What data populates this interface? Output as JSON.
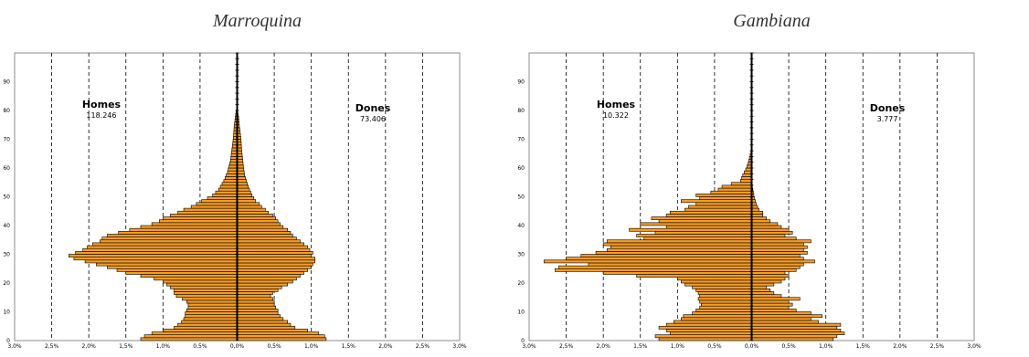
{
  "chart_data": [
    {
      "type": "bar",
      "orientation": "horizontal-pyramid",
      "title": "Marroquina",
      "left_group": {
        "name": "Homes",
        "count": "118.246"
      },
      "right_group": {
        "name": "Dones",
        "count": "73.406"
      },
      "x_ticks": [
        "3,0%",
        "2,5%",
        "2,0%",
        "1,5%",
        "1,0%",
        "0,5%",
        "0,0%",
        "0,5%",
        "1,0%",
        "1,5%",
        "2,0%",
        "2,5%",
        "3,0%"
      ],
      "y_ticks": [
        "0",
        "10",
        "20",
        "30",
        "40",
        "50",
        "60",
        "70",
        "80",
        "90"
      ],
      "xlim": [
        -3.0,
        3.0
      ],
      "ylim": [
        0,
        100
      ],
      "color": "#f39c2a",
      "edge_color": "#000000",
      "male_keys": [
        [
          0,
          1.3
        ],
        [
          1,
          1.25
        ],
        [
          2,
          1.15
        ],
        [
          3,
          1.0
        ],
        [
          4,
          0.85
        ],
        [
          5,
          0.8
        ],
        [
          6,
          0.75
        ],
        [
          7,
          0.72
        ],
        [
          8,
          0.7
        ],
        [
          9,
          0.7
        ],
        [
          10,
          0.68
        ],
        [
          11,
          0.66
        ],
        [
          12,
          0.66
        ],
        [
          13,
          0.68
        ],
        [
          14,
          0.74
        ],
        [
          15,
          0.82
        ],
        [
          16,
          0.85
        ],
        [
          17,
          0.85
        ],
        [
          18,
          0.9
        ],
        [
          19,
          0.95
        ],
        [
          20,
          1.0
        ],
        [
          21,
          1.12
        ],
        [
          22,
          1.3
        ],
        [
          23,
          1.5
        ],
        [
          24,
          1.62
        ],
        [
          25,
          1.75
        ],
        [
          26,
          1.9
        ],
        [
          27,
          2.05
        ],
        [
          28,
          2.2
        ],
        [
          29,
          2.27
        ],
        [
          30,
          2.18
        ],
        [
          31,
          2.08
        ],
        [
          32,
          2.02
        ],
        [
          33,
          1.95
        ],
        [
          34,
          1.85
        ],
        [
          35,
          1.82
        ],
        [
          36,
          1.75
        ],
        [
          37,
          1.6
        ],
        [
          38,
          1.45
        ],
        [
          39,
          1.3
        ],
        [
          40,
          1.15
        ],
        [
          41,
          1.05
        ],
        [
          42,
          1.0
        ],
        [
          43,
          0.9
        ],
        [
          44,
          0.8
        ],
        [
          45,
          0.72
        ],
        [
          46,
          0.62
        ],
        [
          47,
          0.55
        ],
        [
          48,
          0.48
        ],
        [
          49,
          0.4
        ],
        [
          50,
          0.33
        ],
        [
          52,
          0.25
        ],
        [
          55,
          0.18
        ],
        [
          58,
          0.13
        ],
        [
          62,
          0.09
        ],
        [
          66,
          0.07
        ],
        [
          70,
          0.05
        ],
        [
          74,
          0.04
        ],
        [
          78,
          0.02
        ],
        [
          81,
          0.0
        ]
      ],
      "female_keys": [
        [
          0,
          1.2
        ],
        [
          1,
          1.18
        ],
        [
          2,
          1.1
        ],
        [
          3,
          0.95
        ],
        [
          4,
          0.78
        ],
        [
          5,
          0.72
        ],
        [
          6,
          0.68
        ],
        [
          7,
          0.62
        ],
        [
          8,
          0.58
        ],
        [
          9,
          0.55
        ],
        [
          10,
          0.55
        ],
        [
          11,
          0.52
        ],
        [
          12,
          0.5
        ],
        [
          13,
          0.5
        ],
        [
          14,
          0.48
        ],
        [
          15,
          0.45
        ],
        [
          16,
          0.48
        ],
        [
          17,
          0.55
        ],
        [
          18,
          0.6
        ],
        [
          19,
          0.68
        ],
        [
          20,
          0.75
        ],
        [
          21,
          0.8
        ],
        [
          22,
          0.85
        ],
        [
          23,
          0.9
        ],
        [
          24,
          0.95
        ],
        [
          25,
          1.0
        ],
        [
          26,
          1.02
        ],
        [
          27,
          1.05
        ],
        [
          28,
          1.05
        ],
        [
          29,
          1.0
        ],
        [
          30,
          1.02
        ],
        [
          31,
          0.98
        ],
        [
          32,
          0.95
        ],
        [
          33,
          0.9
        ],
        [
          34,
          0.85
        ],
        [
          35,
          0.8
        ],
        [
          36,
          0.75
        ],
        [
          37,
          0.72
        ],
        [
          38,
          0.68
        ],
        [
          39,
          0.62
        ],
        [
          40,
          0.58
        ],
        [
          41,
          0.55
        ],
        [
          42,
          0.52
        ],
        [
          43,
          0.48
        ],
        [
          44,
          0.42
        ],
        [
          45,
          0.38
        ],
        [
          46,
          0.33
        ],
        [
          47,
          0.3
        ],
        [
          48,
          0.25
        ],
        [
          50,
          0.2
        ],
        [
          53,
          0.15
        ],
        [
          57,
          0.1
        ],
        [
          61,
          0.08
        ],
        [
          66,
          0.06
        ],
        [
          70,
          0.05
        ],
        [
          74,
          0.03
        ],
        [
          77,
          0.02
        ],
        [
          80,
          0.0
        ]
      ]
    },
    {
      "type": "bar",
      "orientation": "horizontal-pyramid",
      "title": "Gambiana",
      "left_group": {
        "name": "Homes",
        "count": "10.322"
      },
      "right_group": {
        "name": "Dones",
        "count": "3.777"
      },
      "x_ticks": [
        "3,0%",
        "2,5%",
        "2,0%",
        "1,5%",
        "1,0%",
        "0,5%",
        "0,0%",
        "0,5%",
        "1,0%",
        "1,5%",
        "2,0%",
        "2,5%",
        "3,0%"
      ],
      "y_ticks": [
        "0",
        "10",
        "20",
        "30",
        "40",
        "50",
        "60",
        "70",
        "80",
        "90"
      ],
      "xlim": [
        -3.0,
        3.0
      ],
      "ylim": [
        0,
        100
      ],
      "color": "#f39c2a",
      "edge_color": "#000000",
      "male_keys": [
        [
          0,
          1.25
        ],
        [
          1,
          1.3
        ],
        [
          2,
          1.1
        ],
        [
          3,
          1.15
        ],
        [
          4,
          1.25
        ],
        [
          5,
          1.15
        ],
        [
          6,
          1.05
        ],
        [
          7,
          0.95
        ],
        [
          8,
          0.92
        ],
        [
          9,
          0.8
        ],
        [
          10,
          0.75
        ],
        [
          11,
          0.7
        ],
        [
          12,
          0.68
        ],
        [
          13,
          0.7
        ],
        [
          14,
          0.72
        ],
        [
          15,
          0.7
        ],
        [
          16,
          0.72
        ],
        [
          17,
          0.75
        ],
        [
          18,
          0.8
        ],
        [
          19,
          0.9
        ],
        [
          20,
          0.95
        ],
        [
          21,
          1.0
        ],
        [
          22,
          1.55
        ],
        [
          23,
          2.0
        ],
        [
          24,
          2.65
        ],
        [
          25,
          2.6
        ],
        [
          26,
          2.2
        ],
        [
          27,
          2.8
        ],
        [
          28,
          2.5
        ],
        [
          29,
          2.3
        ],
        [
          30,
          2.1
        ],
        [
          31,
          1.95
        ],
        [
          32,
          1.9
        ],
        [
          33,
          2.0
        ],
        [
          34,
          1.95
        ],
        [
          35,
          1.45
        ],
        [
          36,
          1.55
        ],
        [
          37,
          1.3
        ],
        [
          38,
          1.65
        ],
        [
          39,
          1.15
        ],
        [
          40,
          1.5
        ],
        [
          41,
          1.25
        ],
        [
          42,
          1.35
        ],
        [
          43,
          1.15
        ],
        [
          44,
          1.1
        ],
        [
          45,
          0.9
        ],
        [
          46,
          0.85
        ],
        [
          47,
          0.75
        ],
        [
          48,
          0.95
        ],
        [
          49,
          0.7
        ],
        [
          50,
          0.75
        ],
        [
          51,
          0.55
        ],
        [
          52,
          0.45
        ],
        [
          53,
          0.4
        ],
        [
          55,
          0.15
        ],
        [
          57,
          0.12
        ],
        [
          59,
          0.08
        ],
        [
          61,
          0.05
        ],
        [
          63,
          0.03
        ],
        [
          66,
          0.0
        ]
      ],
      "female_keys": [
        [
          0,
          1.1
        ],
        [
          1,
          1.15
        ],
        [
          2,
          1.25
        ],
        [
          3,
          1.2
        ],
        [
          4,
          1.15
        ],
        [
          5,
          1.2
        ],
        [
          6,
          0.9
        ],
        [
          7,
          0.8
        ],
        [
          8,
          0.95
        ],
        [
          9,
          0.8
        ],
        [
          10,
          0.6
        ],
        [
          11,
          0.5
        ],
        [
          12,
          0.55
        ],
        [
          13,
          0.5
        ],
        [
          14,
          0.65
        ],
        [
          15,
          0.4
        ],
        [
          16,
          0.3
        ],
        [
          17,
          0.25
        ],
        [
          18,
          0.2
        ],
        [
          19,
          0.3
        ],
        [
          20,
          0.4
        ],
        [
          21,
          0.45
        ],
        [
          22,
          0.5
        ],
        [
          23,
          0.45
        ],
        [
          24,
          0.6
        ],
        [
          25,
          0.65
        ],
        [
          26,
          0.7
        ],
        [
          27,
          0.85
        ],
        [
          28,
          0.7
        ],
        [
          29,
          0.65
        ],
        [
          30,
          0.75
        ],
        [
          31,
          0.7
        ],
        [
          32,
          0.75
        ],
        [
          33,
          0.7
        ],
        [
          34,
          0.8
        ],
        [
          35,
          0.6
        ],
        [
          36,
          0.45
        ],
        [
          37,
          0.55
        ],
        [
          38,
          0.5
        ],
        [
          39,
          0.4
        ],
        [
          40,
          0.35
        ],
        [
          41,
          0.25
        ],
        [
          42,
          0.2
        ],
        [
          43,
          0.15
        ],
        [
          44,
          0.15
        ],
        [
          45,
          0.1
        ],
        [
          46,
          0.08
        ],
        [
          47,
          0.06
        ],
        [
          48,
          0.05
        ],
        [
          50,
          0.03
        ],
        [
          53,
          0.01
        ],
        [
          55,
          0.0
        ]
      ]
    }
  ]
}
